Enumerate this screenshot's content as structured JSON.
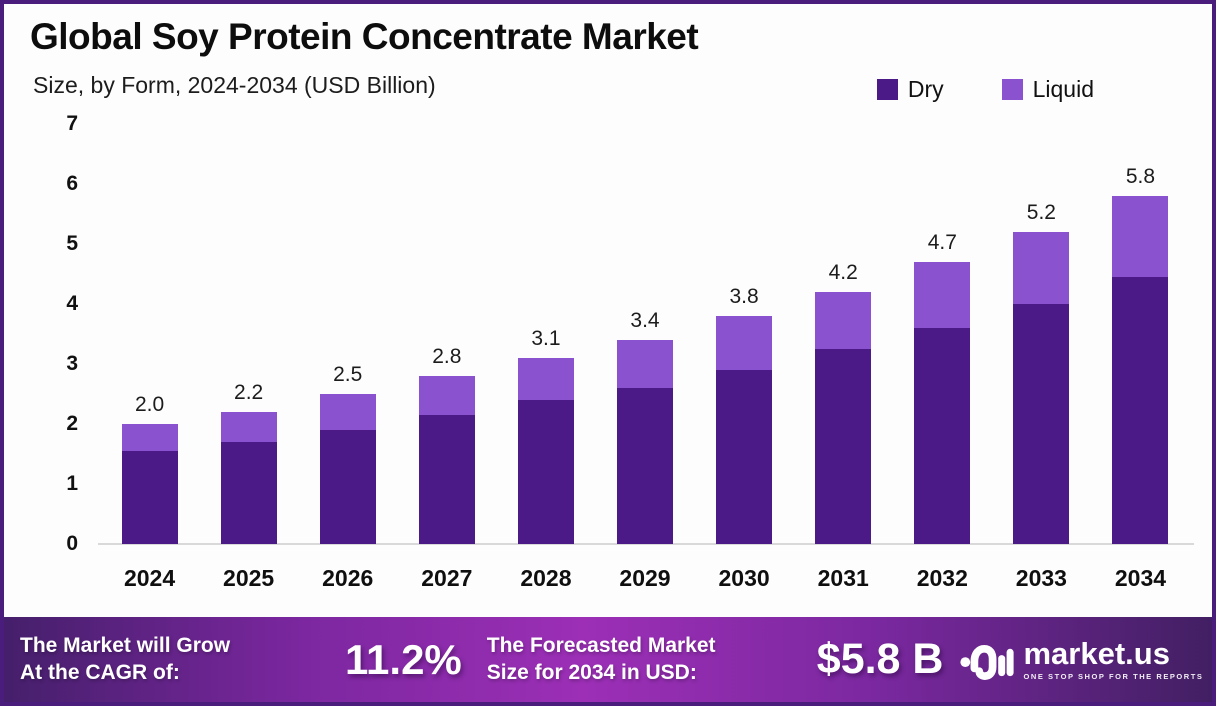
{
  "title": "Global Soy Protein Concentrate Market",
  "subtitle": "Size, by Form, 2024-2034 (USD Billion)",
  "legend": [
    {
      "label": "Dry",
      "color": "#4b1a87"
    },
    {
      "label": "Liquid",
      "color": "#8a52ce"
    }
  ],
  "chart_data": {
    "type": "bar",
    "stacked": true,
    "title": "Global Soy Protein Concentrate Market Size, by Form, 2024-2034 (USD Billion)",
    "categories": [
      "2024",
      "2025",
      "2026",
      "2027",
      "2028",
      "2029",
      "2030",
      "2031",
      "2032",
      "2033",
      "2034"
    ],
    "series": [
      {
        "name": "Dry",
        "color": "#4b1a87",
        "values": [
          1.55,
          1.7,
          1.9,
          2.15,
          2.4,
          2.6,
          2.9,
          3.25,
          3.6,
          4.0,
          4.45
        ]
      },
      {
        "name": "Liquid",
        "color": "#8a52ce",
        "values": [
          0.45,
          0.5,
          0.6,
          0.65,
          0.7,
          0.8,
          0.9,
          0.95,
          1.1,
          1.2,
          1.35
        ]
      }
    ],
    "totals_labels": [
      "2.0",
      "2.2",
      "2.5",
      "2.8",
      "3.1",
      "3.4",
      "3.8",
      "4.2",
      "4.7",
      "5.2",
      "5.8"
    ],
    "xlabel": "",
    "ylabel": "",
    "ylim": [
      0,
      7
    ],
    "yticks": [
      0,
      1,
      2,
      3,
      4,
      5,
      6,
      7
    ],
    "grid": false,
    "legend_position": "top-right"
  },
  "footer": {
    "cagr_line1": "The Market will Grow",
    "cagr_line2": "At the CAGR of:",
    "cagr_value": "11.2%",
    "forecast_line1": "The Forecasted Market",
    "forecast_line2": "Size for 2034 in USD:",
    "forecast_value": "$5.8 B",
    "brand_name": "market.us",
    "brand_tagline": "ONE STOP SHOP FOR THE REPORTS"
  },
  "colors": {
    "border": "#4a1c7c",
    "axis_line": "#d9d9d9",
    "banner_left": "#451f6b",
    "banner_mid": "#9c2fb6",
    "banner_right": "#421f63",
    "text_dark": "#0d0d0d"
  }
}
